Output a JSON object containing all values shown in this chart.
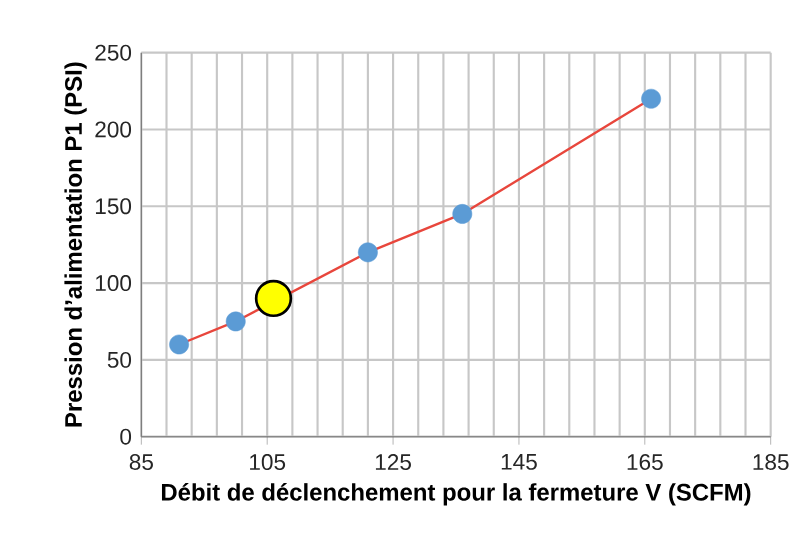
{
  "chart_data": {
    "type": "line",
    "xlabel": "Débit de déclenchement pour la fermeture V (SCFM)",
    "ylabel": "Pression d’alimentation P1 (PSI)",
    "xlim": [
      85,
      185
    ],
    "xticks": [
      85,
      105,
      125,
      145,
      165,
      185
    ],
    "ylim": [
      0,
      250
    ],
    "yticks": [
      0,
      50,
      100,
      150,
      200,
      250
    ],
    "grid": true,
    "marker": "circle",
    "series": [
      {
        "color": "#e8463c",
        "colors": [
          "#5b9bd5",
          "#5b9bd5",
          "#5b9bd5",
          "#5b9bd5",
          "#5b9bd5"
        ],
        "x": [
          91,
          100,
          121,
          136,
          166
        ],
        "values": [
          60,
          75,
          120,
          145,
          220
        ]
      },
      {
        "type": "scatter",
        "color": "#ffff00",
        "x": [
          106
        ],
        "values": [
          90
        ]
      }
    ]
  }
}
